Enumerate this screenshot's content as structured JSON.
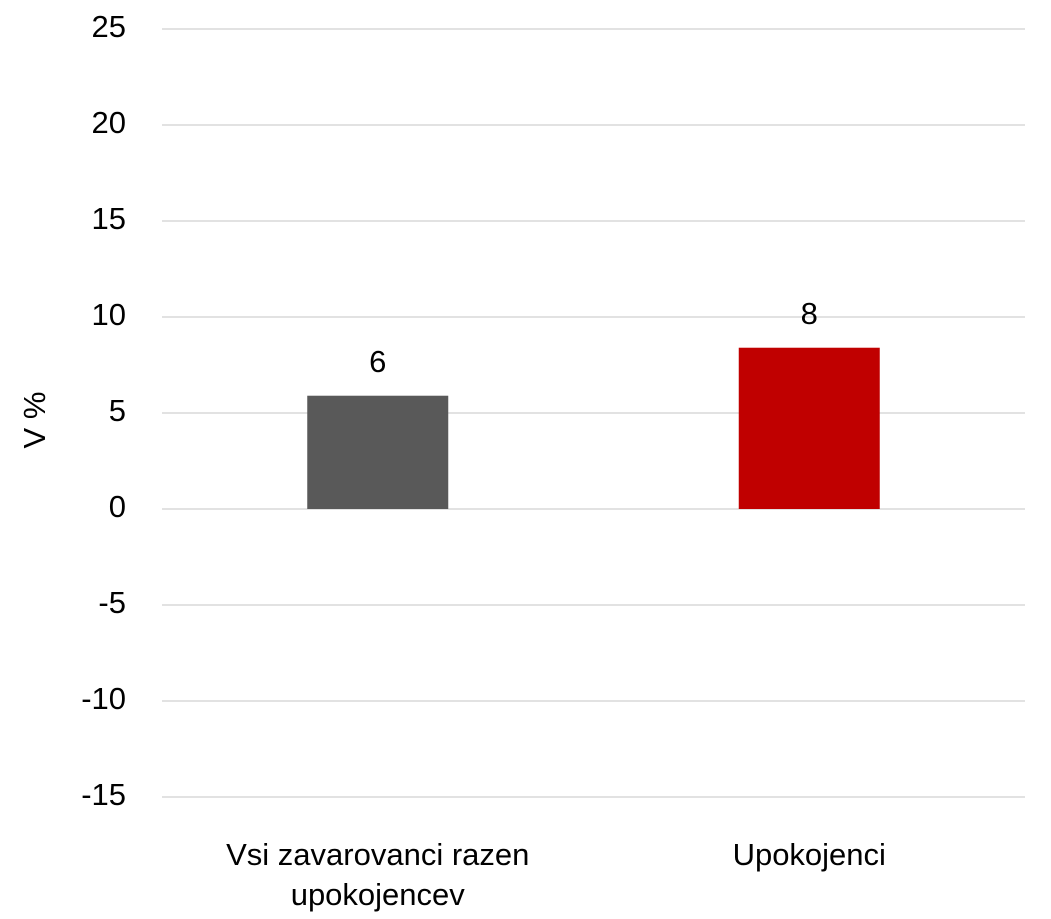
{
  "chart_data": {
    "type": "bar",
    "y_label": "V %",
    "categories": [
      "Vsi zavarovanci razen upokojencev",
      "Upokojenci"
    ],
    "values": [
      5.9,
      8.4
    ],
    "value_labels": [
      "6",
      "8"
    ],
    "colors": [
      "#595959",
      "#c00000"
    ],
    "ylim": [
      -15,
      25
    ],
    "yticks": [
      -15,
      -10,
      -5,
      0,
      5,
      10,
      15,
      20,
      25
    ],
    "grid": true
  }
}
